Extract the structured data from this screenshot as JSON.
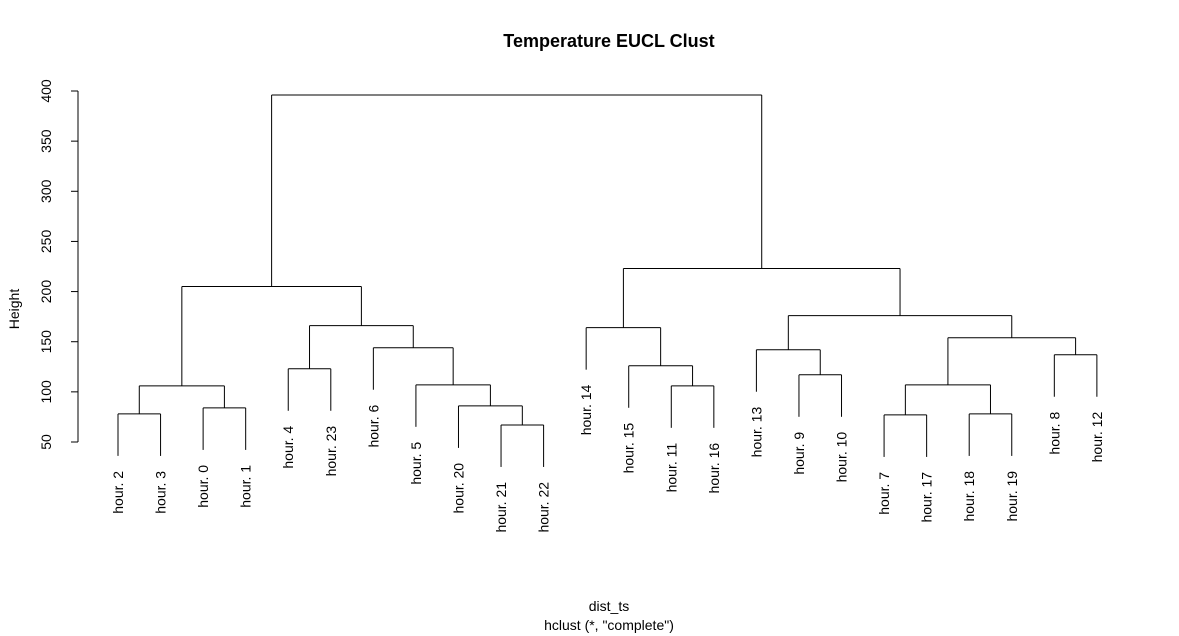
{
  "chart_data": {
    "type": "dendrogram",
    "title": "Temperature EUCL Clust",
    "xlabel": "dist_ts",
    "sublabel": "hclust (*, \"complete\")",
    "ylabel": "Height",
    "ylim": [
      50,
      400
    ],
    "yticks": [
      "50",
      "100",
      "150",
      "200",
      "250",
      "300",
      "350",
      "400"
    ],
    "leaves": [
      "hour. 2",
      "hour. 3",
      "hour. 0",
      "hour. 1",
      "hour. 4",
      "hour. 23",
      "hour. 6",
      "hour. 5",
      "hour. 20",
      "hour. 21",
      "hour. 22",
      "hour. 14",
      "hour. 15",
      "hour. 11",
      "hour. 16",
      "hour. 13",
      "hour. 9",
      "hour. 10",
      "hour. 7",
      "hour. 17",
      "hour. 18",
      "hour. 19",
      "hour. 8",
      "hour. 12"
    ],
    "merges": [
      {
        "left": "hour. 2",
        "right": "hour. 3",
        "height": 78
      },
      {
        "left": "hour. 0",
        "right": "hour. 1",
        "height": 84
      },
      {
        "left": "hour. 4",
        "right": "hour. 23",
        "height": 123
      },
      {
        "left": "hour. 21",
        "right": "hour. 22",
        "height": 67
      },
      {
        "left": "hour. 20",
        "right": "{hour. 21, hour. 22}",
        "height": 86
      },
      {
        "left": "hour. 5",
        "right": "{hour. 20, hour. 21, hour. 22}",
        "height": 107
      },
      {
        "left": "hour. 6",
        "right": "{hour. 5, hour. 20, hour. 21, hour. 22}",
        "height": 144
      },
      {
        "left": "{hour. 4, hour. 23}",
        "right": "{hour. 6, hour. 5, hour. 20, hour. 21, hour. 22}",
        "height": 166
      },
      {
        "left": "{hour. 2, hour. 3}",
        "right": "{hour. 0, hour. 1}",
        "height": 106
      },
      {
        "left": "{hour. 2, hour. 3, hour. 0, hour. 1}",
        "right": "{hour. 4 ... hour. 22}",
        "height": 205
      },
      {
        "left": "hour. 11",
        "right": "hour. 16",
        "height": 106
      },
      {
        "left": "hour. 15",
        "right": "{hour. 11, hour. 16}",
        "height": 126
      },
      {
        "left": "hour. 14",
        "right": "{hour. 15, hour. 11, hour. 16}",
        "height": 164
      },
      {
        "left": "hour. 9",
        "right": "hour. 10",
        "height": 117
      },
      {
        "left": "hour. 13",
        "right": "{hour. 9, hour. 10}",
        "height": 142
      },
      {
        "left": "hour. 7",
        "right": "hour. 17",
        "height": 77
      },
      {
        "left": "hour. 18",
        "right": "hour. 19",
        "height": 78
      },
      {
        "left": "{hour. 7, hour. 17}",
        "right": "{hour. 18, hour. 19}",
        "height": 107
      },
      {
        "left": "hour. 8",
        "right": "hour. 12",
        "height": 137
      },
      {
        "left": "{hour. 7, hour. 17, hour. 18, hour. 19}",
        "right": "{hour. 8, hour. 12}",
        "height": 154
      },
      {
        "left": "{hour. 13, hour. 9, hour. 10}",
        "right": "{hour. 7 ... hour. 12}",
        "height": 176
      },
      {
        "left": "{hour. 14, hour. 15, hour. 11, hour. 16}",
        "right": "{hour. 13 ... hour. 12}",
        "height": 223
      },
      {
        "left": "{hour. 2 ... hour. 22}",
        "right": "{hour. 14 ... hour. 12}",
        "height": 396
      }
    ]
  }
}
